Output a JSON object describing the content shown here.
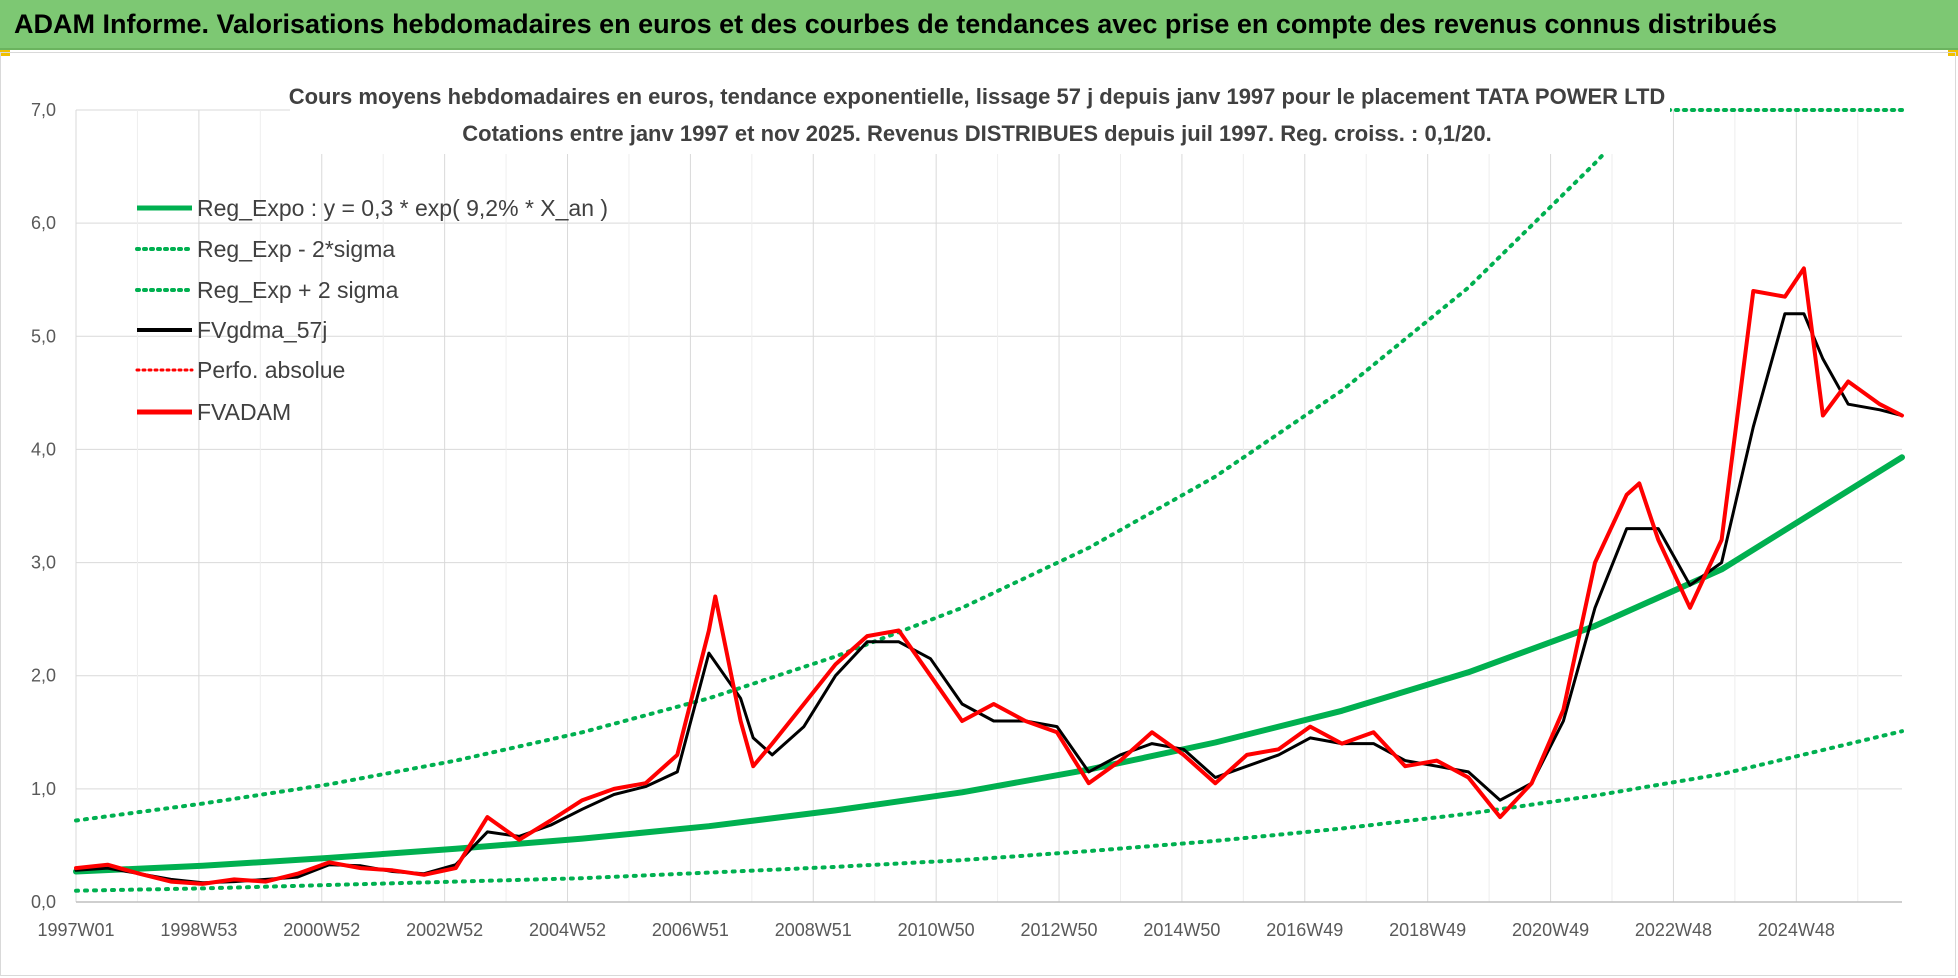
{
  "banner": {
    "title": "ADAM Informe. Valorisations hebdomadaires en euros et des courbes de tendances avec prise en compte des revenus connus distribués"
  },
  "colors": {
    "banner_bg": "#7dc873",
    "green": "#00b050",
    "red": "#ff0000",
    "black": "#000000",
    "grid": "#d9d9d9"
  },
  "chart_data": {
    "type": "line",
    "title_lines": [
      "Cours moyens hebdomadaires en euros, tendance exponentielle, lissage 57 j depuis janv 1997  pour le placement TATA  POWER LTD",
      "Cotations entre janv 1997 et nov 2025. Revenus DISTRIBUES depuis juil 1997. Reg.  croiss. : 0,1/20."
    ],
    "xlabel": "",
    "ylabel": "",
    "ylim": [
      0,
      7
    ],
    "y_ticks": [
      "0,0",
      "1,0",
      "2,0",
      "3,0",
      "4,0",
      "5,0",
      "6,0",
      "7,0"
    ],
    "x_ticks": [
      "1997W01",
      "1998W53",
      "2000W52",
      "2002W52",
      "2004W52",
      "2006W51",
      "2008W51",
      "2010W50",
      "2012W50",
      "2014W50",
      "2016W49",
      "2018W49",
      "2020W49",
      "2022W48",
      "2024W48"
    ],
    "xlim": [
      1997.0,
      2025.85
    ],
    "grid": true,
    "legend_position": "top-left",
    "legend": [
      {
        "label": "Reg_Expo : y = 0,3 * exp( 9,2% *  X_an )",
        "color": "#00b050",
        "style": "solid"
      },
      {
        "label": "Reg_Exp - 2*sigma",
        "color": "#00b050",
        "style": "dotted"
      },
      {
        "label": "Reg_Exp + 2 sigma",
        "color": "#00b050",
        "style": "dotted"
      },
      {
        "label": "FVgdma_57j",
        "color": "#000000",
        "style": "solid"
      },
      {
        "label": "Perfo. absolue",
        "color": "#ff0000",
        "style": "dotted"
      },
      {
        "label": "FVADAM",
        "color": "#ff0000",
        "style": "solid"
      }
    ],
    "series": [
      {
        "name": "Reg_Expo : y = 0,3 * exp( 9,2% *  X_an )",
        "x": [
          1997.0,
          1999.0,
          2001.0,
          2003.0,
          2005.0,
          2007.0,
          2009.0,
          2011.0,
          2013.0,
          2015.0,
          2017.0,
          2019.0,
          2021.0,
          2023.0,
          2025.85
        ],
        "y": [
          0.27,
          0.32,
          0.39,
          0.47,
          0.56,
          0.67,
          0.81,
          0.97,
          1.17,
          1.41,
          1.69,
          2.03,
          2.44,
          2.94,
          3.93
        ]
      },
      {
        "name": "Reg_Exp - 2*sigma",
        "x": [
          1997.0,
          1999.0,
          2001.0,
          2003.0,
          2005.0,
          2007.0,
          2009.0,
          2011.0,
          2013.0,
          2015.0,
          2017.0,
          2019.0,
          2021.0,
          2023.0,
          2025.85
        ],
        "y": [
          0.1,
          0.12,
          0.15,
          0.18,
          0.21,
          0.26,
          0.31,
          0.37,
          0.45,
          0.54,
          0.65,
          0.78,
          0.94,
          1.13,
          1.51
        ]
      },
      {
        "name": "Reg_Exp + 2 sigma",
        "x": [
          1997.0,
          1999.0,
          2001.0,
          2003.0,
          2005.0,
          2007.0,
          2009.0,
          2011.0,
          2013.0,
          2015.0,
          2017.0,
          2019.0,
          2021.0,
          2021.2
        ],
        "y": [
          0.72,
          0.87,
          1.04,
          1.25,
          1.5,
          1.8,
          2.17,
          2.6,
          3.13,
          3.76,
          4.52,
          5.43,
          6.53,
          6.65
        ]
      },
      {
        "name": "FVgdma_57j",
        "x": [
          1997.0,
          1997.5,
          1998.0,
          1998.5,
          1999.0,
          1999.5,
          2000.0,
          2000.5,
          2001.0,
          2001.5,
          2002.0,
          2002.5,
          2003.0,
          2003.5,
          2004.0,
          2004.5,
          2005.0,
          2005.5,
          2006.0,
          2006.5,
          2007.0,
          2007.5,
          2007.7,
          2008.0,
          2008.5,
          2009.0,
          2009.5,
          2010.0,
          2010.5,
          2011.0,
          2011.5,
          2012.0,
          2012.5,
          2013.0,
          2013.5,
          2014.0,
          2014.5,
          2015.0,
          2015.5,
          2016.0,
          2016.5,
          2017.0,
          2017.5,
          2018.0,
          2018.5,
          2019.0,
          2019.5,
          2020.0,
          2020.5,
          2021.0,
          2021.5,
          2022.0,
          2022.5,
          2023.0,
          2023.5,
          2024.0,
          2024.3,
          2024.6,
          2025.0,
          2025.5,
          2025.85
        ],
        "y": [
          0.28,
          0.3,
          0.25,
          0.2,
          0.17,
          0.18,
          0.2,
          0.22,
          0.33,
          0.32,
          0.27,
          0.25,
          0.33,
          0.62,
          0.58,
          0.68,
          0.82,
          0.95,
          1.02,
          1.15,
          2.2,
          1.8,
          1.45,
          1.3,
          1.55,
          2.0,
          2.3,
          2.3,
          2.15,
          1.75,
          1.6,
          1.6,
          1.55,
          1.15,
          1.3,
          1.4,
          1.35,
          1.1,
          1.2,
          1.3,
          1.45,
          1.4,
          1.4,
          1.25,
          1.2,
          1.15,
          0.9,
          1.05,
          1.6,
          2.6,
          3.3,
          3.3,
          2.8,
          3.0,
          4.2,
          5.2,
          5.2,
          4.8,
          4.4,
          4.35,
          4.3
        ]
      },
      {
        "name": "FVADAM",
        "x": [
          1997.0,
          1997.5,
          1998.0,
          1998.5,
          1999.0,
          1999.5,
          2000.0,
          2000.5,
          2001.0,
          2001.5,
          2002.0,
          2002.5,
          2003.0,
          2003.5,
          2004.0,
          2004.5,
          2005.0,
          2005.5,
          2006.0,
          2006.5,
          2007.0,
          2007.1,
          2007.5,
          2007.7,
          2008.0,
          2008.5,
          2009.0,
          2009.5,
          2010.0,
          2010.5,
          2011.0,
          2011.5,
          2012.0,
          2012.5,
          2013.0,
          2013.5,
          2014.0,
          2014.5,
          2015.0,
          2015.5,
          2016.0,
          2016.5,
          2017.0,
          2017.5,
          2018.0,
          2018.5,
          2019.0,
          2019.5,
          2020.0,
          2020.5,
          2021.0,
          2021.5,
          2021.7,
          2022.0,
          2022.5,
          2023.0,
          2023.5,
          2024.0,
          2024.3,
          2024.6,
          2025.0,
          2025.5,
          2025.85
        ],
        "y": [
          0.3,
          0.33,
          0.25,
          0.18,
          0.16,
          0.2,
          0.18,
          0.25,
          0.35,
          0.3,
          0.28,
          0.24,
          0.3,
          0.75,
          0.55,
          0.72,
          0.9,
          1.0,
          1.05,
          1.3,
          2.4,
          2.7,
          1.6,
          1.2,
          1.4,
          1.75,
          2.1,
          2.35,
          2.4,
          2.0,
          1.6,
          1.75,
          1.6,
          1.5,
          1.05,
          1.25,
          1.5,
          1.3,
          1.05,
          1.3,
          1.35,
          1.55,
          1.4,
          1.5,
          1.2,
          1.25,
          1.1,
          0.75,
          1.05,
          1.7,
          3.0,
          3.6,
          3.7,
          3.2,
          2.6,
          3.2,
          5.4,
          5.35,
          5.6,
          4.3,
          4.6,
          4.4,
          4.3
        ]
      }
    ]
  }
}
